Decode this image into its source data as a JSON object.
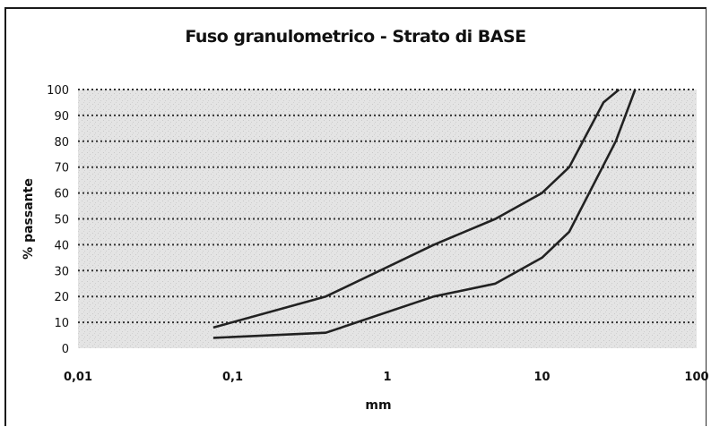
{
  "chart_data": {
    "type": "line",
    "title": "Fuso granulometrico - Strato di BASE",
    "xlabel": "mm",
    "ylabel": "% passante",
    "xscale": "log",
    "xlim": [
      0.01,
      100
    ],
    "ylim": [
      0,
      100
    ],
    "grid": true,
    "legend": "none",
    "x_ticks": [
      "0,01",
      "0,1",
      "1",
      "10",
      "100"
    ],
    "x_tick_values": [
      0.01,
      0.1,
      1,
      10,
      100
    ],
    "y_ticks": [
      "0",
      "10",
      "20",
      "30",
      "40",
      "50",
      "60",
      "70",
      "80",
      "90",
      "100"
    ],
    "y_tick_values": [
      0,
      10,
      20,
      30,
      40,
      50,
      60,
      70,
      80,
      90,
      100
    ],
    "series": [
      {
        "x": [
          0.075,
          0.4,
          2,
          5,
          10,
          15,
          25,
          31.5
        ],
        "y": [
          8,
          20,
          40,
          50,
          60,
          70,
          95,
          100
        ]
      },
      {
        "x": [
          0.075,
          0.4,
          2,
          5,
          10,
          15,
          30,
          40
        ],
        "y": [
          4,
          6,
          20,
          25,
          35,
          45,
          80,
          100
        ]
      }
    ],
    "colors": {
      "line": "#222222",
      "plot_background": "#e2e2e2",
      "grid": "#333333"
    }
  }
}
